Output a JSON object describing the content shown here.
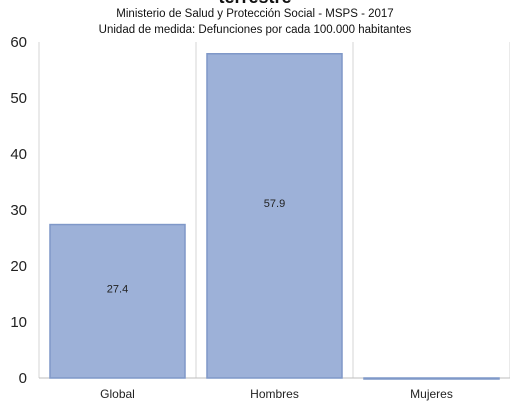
{
  "chart_data": {
    "type": "bar",
    "title": "terrestre",
    "subtitle_lines": [
      "Ministerio de Salud y Protección Social - MSPS - 2017",
      "Unidad de medida: Defunciones por cada 100.000 habitantes"
    ],
    "categories": [
      "Global",
      "Hombres",
      "Mujeres"
    ],
    "values": [
      27.4,
      57.9,
      0
    ],
    "data_labels": [
      "27.4",
      "57.9",
      ""
    ],
    "ylim": [
      0,
      60
    ],
    "yticks": [
      0,
      10,
      20,
      30,
      40,
      50,
      60
    ],
    "xlabel": "",
    "ylabel": "",
    "grid": "vertical separators between categories",
    "legend": "none",
    "colors": {
      "bar_fill": "#9db1d8",
      "bar_stroke": "#7f98c8",
      "grid": "#d6d6d6"
    }
  }
}
